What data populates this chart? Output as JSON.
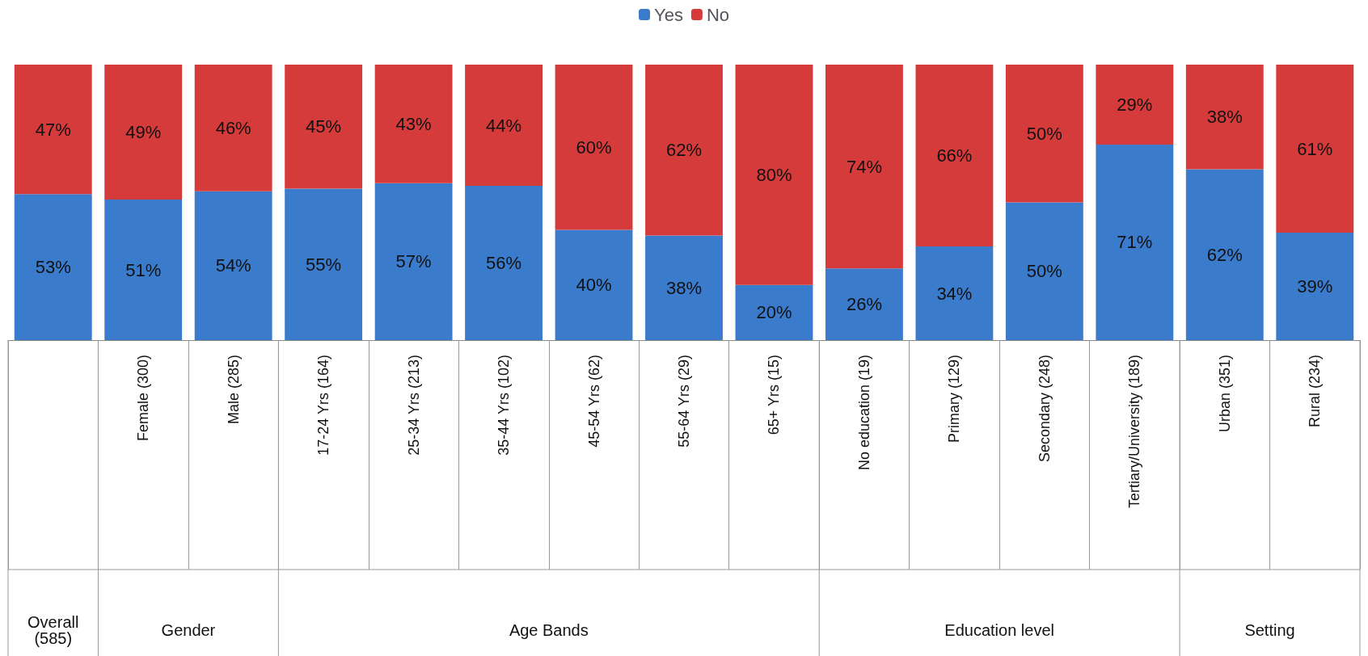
{
  "chart_data": {
    "type": "bar",
    "stacked": true,
    "legend": "top",
    "categories": [
      null,
      "Female (300)",
      "Male (285)",
      "17-24 Yrs (164)",
      "25-34 Yrs (213)",
      "35-44 Yrs (102)",
      "45-54 Yrs (62)",
      "55-64 Yrs (29)",
      "65+ Yrs (15)",
      "No education (19)",
      "Primary (129)",
      "Secondary (248)",
      "Tertiary/University (189)",
      "Urban (351)",
      "Rural (234)"
    ],
    "series": [
      {
        "name": "Yes",
        "color": "#3b7bcc",
        "values": [
          53,
          51,
          54,
          55,
          57,
          56,
          40,
          38,
          20,
          26,
          34,
          50,
          71,
          62,
          39
        ],
        "value_labels": [
          "53%",
          "51%",
          "54%",
          "55%",
          "57%",
          "56%",
          "40%",
          "38%",
          "20%",
          "26%",
          "34%",
          "50%",
          "71%",
          "62%",
          "39%"
        ]
      },
      {
        "name": "No",
        "color": "#d63b3b",
        "values": [
          47,
          49,
          46,
          45,
          43,
          44,
          60,
          62,
          80,
          74,
          66,
          50,
          29,
          38,
          61
        ],
        "value_labels": [
          "47%",
          "49%",
          "46%",
          "45%",
          "43%",
          "44%",
          "60%",
          "62%",
          "80%",
          "74%",
          "66%",
          "50%",
          "29%",
          "38%",
          "61%"
        ]
      }
    ],
    "annotations": [
      "Overall\n(585)",
      "Gender",
      "Age Bands",
      "Education level",
      "Setting"
    ]
  }
}
